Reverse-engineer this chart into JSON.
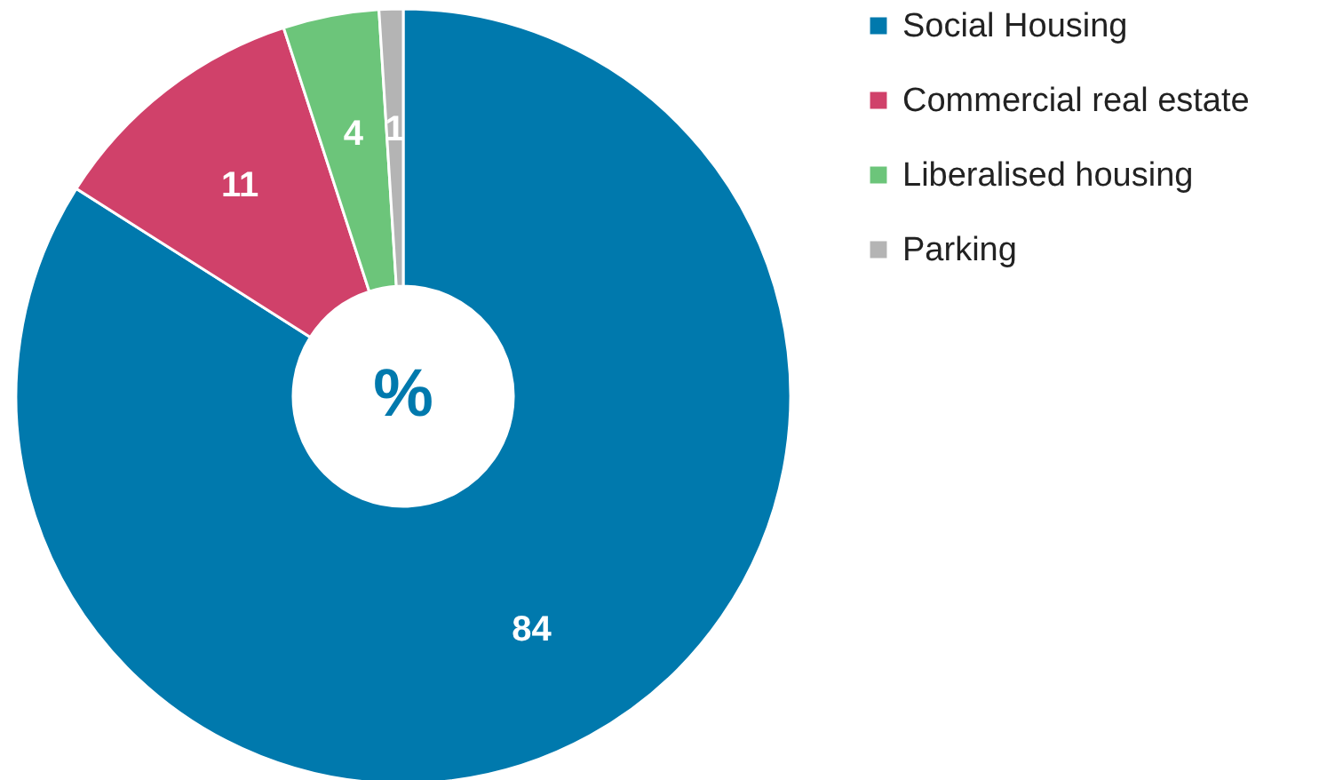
{
  "chart_data": {
    "type": "donut",
    "categories": [
      "Social Housing",
      "Commercial real estate",
      "Liberalised housing",
      "Parking"
    ],
    "values": [
      84,
      11,
      4,
      1
    ],
    "colors": [
      "#0079ad",
      "#d0416a",
      "#6cc57a",
      "#b4b4b4"
    ],
    "data_labels": true,
    "legend": "right",
    "annotations": [
      "%"
    ]
  }
}
